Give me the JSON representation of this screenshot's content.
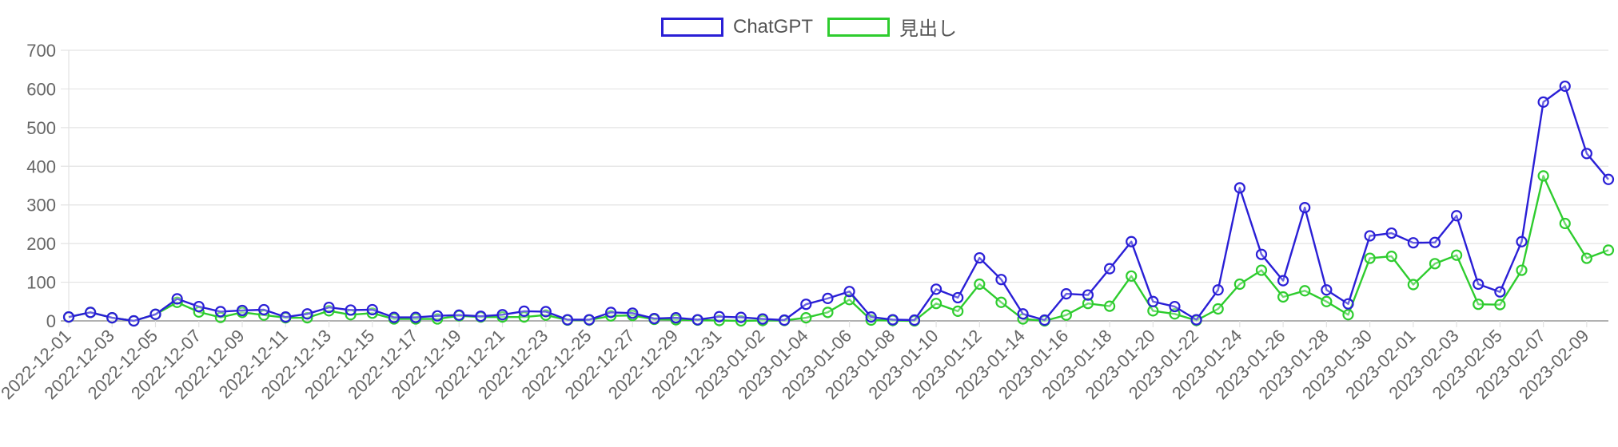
{
  "legend": {
    "series0": "ChatGPT",
    "series1": "見出し"
  },
  "colors": {
    "series0": "#2a1fd6",
    "series1": "#2ecc2e",
    "grid": "#e3e3e3",
    "axis": "#999999"
  },
  "chart_data": {
    "type": "line",
    "grid": true,
    "legend_position": "top-center",
    "ylim": [
      0,
      700
    ],
    "yticks": [
      0,
      100,
      200,
      300,
      400,
      500,
      600,
      700
    ],
    "x": [
      "2022-12-01",
      "2022-12-02",
      "2022-12-03",
      "2022-12-04",
      "2022-12-05",
      "2022-12-06",
      "2022-12-07",
      "2022-12-08",
      "2022-12-09",
      "2022-12-10",
      "2022-12-11",
      "2022-12-12",
      "2022-12-13",
      "2022-12-14",
      "2022-12-15",
      "2022-12-16",
      "2022-12-17",
      "2022-12-18",
      "2022-12-19",
      "2022-12-20",
      "2022-12-21",
      "2022-12-22",
      "2022-12-23",
      "2022-12-24",
      "2022-12-25",
      "2022-12-26",
      "2022-12-27",
      "2022-12-28",
      "2022-12-29",
      "2022-12-30",
      "2022-12-31",
      "2023-01-01",
      "2023-01-02",
      "2023-01-03",
      "2023-01-04",
      "2023-01-05",
      "2023-01-06",
      "2023-01-07",
      "2023-01-08",
      "2023-01-09",
      "2023-01-10",
      "2023-01-11",
      "2023-01-12",
      "2023-01-13",
      "2023-01-14",
      "2023-01-15",
      "2023-01-16",
      "2023-01-17",
      "2023-01-18",
      "2023-01-19",
      "2023-01-20",
      "2023-01-21",
      "2023-01-22",
      "2023-01-23",
      "2023-01-24",
      "2023-01-25",
      "2023-01-26",
      "2023-01-27",
      "2023-01-28",
      "2023-01-29",
      "2023-01-30",
      "2023-01-31",
      "2023-02-01",
      "2023-02-02",
      "2023-02-03",
      "2023-02-04",
      "2023-02-05",
      "2023-02-06",
      "2023-02-07",
      "2023-02-08",
      "2023-02-09",
      "2023-02-10"
    ],
    "xtick_labels": [
      "2022-12-01",
      "2022-12-03",
      "2022-12-05",
      "2022-12-07",
      "2022-12-09",
      "2022-12-11",
      "2022-12-13",
      "2022-12-15",
      "2022-12-17",
      "2022-12-19",
      "2022-12-21",
      "2022-12-23",
      "2022-12-25",
      "2022-12-27",
      "2022-12-29",
      "2022-12-31",
      "2023-01-02",
      "2023-01-04",
      "2023-01-06",
      "2023-01-08",
      "2023-01-10",
      "2023-01-12",
      "2023-01-14",
      "2023-01-16",
      "2023-01-18",
      "2023-01-20",
      "2023-01-22",
      "2023-01-24",
      "2023-01-26",
      "2023-01-28",
      "2023-01-30",
      "2023-02-01",
      "2023-02-03",
      "2023-02-05",
      "2023-02-07",
      "2023-02-09"
    ],
    "series": [
      {
        "name": "ChatGPT",
        "values": [
          10,
          22,
          8,
          0,
          17,
          57,
          37,
          24,
          27,
          29,
          10,
          18,
          35,
          28,
          29,
          9,
          9,
          13,
          15,
          12,
          16,
          25,
          24,
          3,
          3,
          22,
          20,
          6,
          8,
          3,
          11,
          9,
          5,
          2,
          43,
          58,
          76,
          10,
          3,
          2,
          82,
          60,
          163,
          107,
          18,
          2,
          70,
          67,
          135,
          205,
          50,
          37,
          3,
          80,
          344,
          172,
          104,
          293,
          80,
          44,
          220,
          227,
          202,
          203,
          272,
          95,
          75,
          205,
          566,
          607,
          433,
          366
        ]
      },
      {
        "name": "見出し",
        "values": [
          10,
          22,
          8,
          0,
          17,
          48,
          23,
          9,
          22,
          15,
          8,
          8,
          26,
          16,
          20,
          5,
          5,
          5,
          13,
          10,
          10,
          10,
          15,
          2,
          2,
          13,
          14,
          4,
          3,
          2,
          1,
          0,
          1,
          1,
          8,
          22,
          55,
          2,
          1,
          0,
          45,
          25,
          95,
          48,
          5,
          0,
          15,
          45,
          38,
          116,
          26,
          18,
          1,
          31,
          95,
          131,
          62,
          78,
          50,
          16,
          162,
          167,
          94,
          148,
          170,
          43,
          42,
          131,
          375,
          252,
          162,
          183
        ]
      }
    ]
  }
}
